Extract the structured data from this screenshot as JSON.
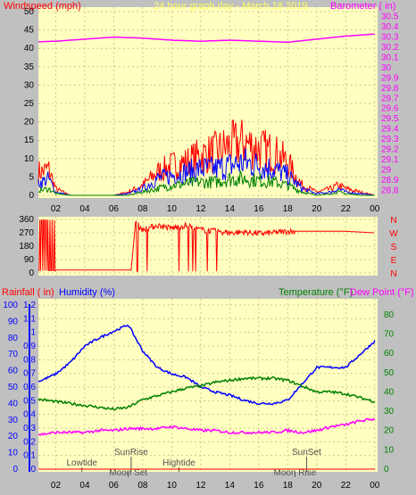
{
  "header": {
    "left_title": "Windspeed (mph)",
    "center_title": "24 hour graph day - March 18 2019",
    "right_title": "Barometer ( in)"
  },
  "rain_panel": {
    "label_rainfall": "Rainfall ( in)",
    "label_humidity": "Humidity (%)",
    "label_temperature": "Temperature (°F)",
    "label_dewpoint": "Dew Point (°F)"
  },
  "direction_labels": [
    "N",
    "W",
    "S",
    "E",
    "N"
  ],
  "colors": {
    "panel_bg": "#ffffc0",
    "frame_bg": "#c0c0c0",
    "wind_gust": "#ff0000",
    "wind_avg": "#0000ff",
    "wind_low": "#008000",
    "barometer": "#ff00ff",
    "direction": "#ff0000",
    "humidity": "#0000ff",
    "temperature": "#008000",
    "dewpoint": "#ff00ff",
    "rain": "#ff0000",
    "event_text": "#505050"
  },
  "chart_data": [
    {
      "type": "line",
      "name": "wind",
      "x_ticks": [
        "02",
        "04",
        "06",
        "08",
        "10",
        "12",
        "14",
        "16",
        "18",
        "20",
        "22",
        "00"
      ],
      "y_left_ticks": [
        0,
        5,
        10,
        15,
        20,
        25,
        30,
        35,
        40,
        45,
        50
      ],
      "y_left_range": [
        0,
        50
      ],
      "y_right_ticks": [
        "28.8",
        "28.9",
        "29",
        "29.1",
        "29.2",
        "29.3",
        "29.4",
        "29.5",
        "29.6",
        "29.7",
        "29.8",
        "29.9",
        "30",
        "30.1",
        "30.2",
        "30.3",
        "30.4",
        "30.5"
      ],
      "y_right_range": [
        28.75,
        30.55
      ],
      "series": [
        {
          "name": "Windspeed gust",
          "x_hours": [
            0,
            0.5,
            1,
            1.5,
            2,
            3,
            4,
            5,
            6,
            7,
            8,
            9,
            10,
            11,
            12,
            13,
            14,
            15,
            16,
            17,
            18,
            18.5,
            19,
            20,
            21,
            21.5,
            22,
            23,
            24
          ],
          "values": [
            9,
            8,
            7,
            8,
            2,
            0,
            0,
            0,
            0,
            1,
            3,
            7,
            9,
            10,
            12,
            13,
            15,
            16,
            14,
            13,
            10,
            6,
            3,
            1,
            2,
            3,
            2,
            1,
            0
          ]
        },
        {
          "name": "Windspeed average",
          "x_hours": [
            0,
            0.5,
            1,
            1.5,
            2,
            3,
            4,
            5,
            6,
            7,
            8,
            9,
            10,
            11,
            12,
            13,
            14,
            15,
            16,
            17,
            18,
            18.5,
            19,
            20,
            21,
            21.5,
            22,
            23,
            24
          ],
          "values": [
            5,
            4,
            4,
            5,
            1,
            0,
            0,
            0,
            0,
            0.5,
            2,
            5,
            6,
            7,
            8,
            8,
            9,
            10,
            9,
            8,
            6,
            4,
            2,
            0.5,
            1,
            2,
            1,
            0.5,
            0
          ]
        },
        {
          "name": "Windspeed low",
          "x_hours": [
            0,
            0.5,
            1,
            1.5,
            2,
            3,
            4,
            5,
            6,
            7,
            8,
            9,
            10,
            11,
            12,
            13,
            14,
            15,
            16,
            17,
            18,
            18.5,
            19,
            20,
            21,
            21.5,
            22,
            23,
            24
          ],
          "values": [
            2,
            2,
            1.5,
            2,
            0.5,
            0,
            0,
            0,
            0,
            0,
            1,
            2,
            3,
            3.5,
            4,
            4,
            5,
            5,
            4.5,
            4,
            3,
            2,
            1,
            0,
            0.5,
            1,
            0.5,
            0,
            0
          ]
        },
        {
          "name": "Barometer",
          "axis": "right",
          "x_hours": [
            0,
            2,
            4,
            6,
            8,
            10,
            12,
            14,
            16,
            18,
            20,
            22,
            24
          ],
          "values": [
            30.25,
            30.26,
            30.28,
            30.3,
            30.29,
            30.27,
            30.26,
            30.27,
            30.26,
            30.25,
            30.28,
            30.31,
            30.33
          ]
        }
      ]
    },
    {
      "type": "line",
      "name": "wind_direction",
      "x_ticks": [
        "02",
        "04",
        "06",
        "08",
        "10",
        "12",
        "14",
        "16",
        "18",
        "20",
        "22",
        "00"
      ],
      "y_ticks": [
        0,
        90,
        180,
        270,
        360
      ],
      "y_range": [
        0,
        360
      ],
      "series": [
        {
          "name": "Wind direction",
          "x_hours": [
            0,
            0.3,
            0.6,
            0.9,
            1.2,
            1.5,
            2,
            4,
            6,
            7.2,
            7.5,
            8,
            9,
            10,
            11,
            12,
            13,
            14,
            15,
            16,
            17,
            18,
            18.5,
            19,
            20,
            22,
            24
          ],
          "values": [
            350,
            20,
            340,
            15,
            330,
            20,
            20,
            20,
            20,
            20,
            340,
            290,
            320,
            300,
            320,
            290,
            280,
            270,
            275,
            265,
            270,
            280,
            280,
            280,
            280,
            280,
            270
          ]
        }
      ]
    },
    {
      "type": "line",
      "name": "humidity_temperature",
      "x_ticks": [
        "02",
        "04",
        "06",
        "08",
        "10",
        "12",
        "14",
        "16",
        "18",
        "20",
        "22",
        "00"
      ],
      "y_rain_ticks": [
        "0",
        "0.1",
        "0.2",
        "0.3",
        "0.4",
        "0.5",
        "0.6",
        "0.7",
        "0.8",
        "0.9",
        "1",
        "1.1",
        "1.2"
      ],
      "y_rain_range": [
        0,
        1.2
      ],
      "y_humidity_ticks": [
        0,
        10,
        20,
        30,
        40,
        50,
        60,
        70,
        80,
        90,
        100
      ],
      "y_humidity_range": [
        0,
        100
      ],
      "y_temp_ticks": [
        0,
        10,
        20,
        30,
        40,
        50,
        60,
        70,
        80
      ],
      "y_temp_range": [
        0,
        85
      ],
      "series": [
        {
          "name": "Humidity",
          "x_hours": [
            0,
            1,
            2,
            3,
            4,
            5,
            6,
            7,
            8,
            9,
            10,
            11,
            12,
            13,
            14,
            15,
            16,
            17,
            18,
            19,
            20,
            21,
            22,
            23,
            24
          ],
          "values": [
            52,
            54,
            58,
            65,
            75,
            80,
            84,
            88,
            72,
            62,
            58,
            56,
            50,
            47,
            45,
            42,
            40,
            40,
            42,
            52,
            62,
            62,
            62,
            70,
            78
          ]
        },
        {
          "name": "Temperature",
          "axis": "temp",
          "x_hours": [
            0,
            1,
            2,
            3,
            4,
            5,
            6,
            7,
            8,
            9,
            10,
            11,
            12,
            13,
            14,
            15,
            16,
            17,
            18,
            19,
            20,
            21,
            22,
            23,
            24
          ],
          "values": [
            37,
            36,
            35,
            34,
            33,
            32,
            31,
            32,
            36,
            38,
            40,
            42,
            43,
            45,
            46,
            47,
            47,
            47,
            46,
            43,
            40,
            40,
            39,
            37,
            35
          ]
        },
        {
          "name": "Dew Point",
          "axis": "temp",
          "x_hours": [
            0,
            1,
            2,
            3,
            4,
            5,
            6,
            7,
            8,
            9,
            10,
            11,
            12,
            13,
            14,
            15,
            16,
            17,
            18,
            19,
            20,
            21,
            22,
            23,
            24
          ],
          "values": [
            18,
            18,
            19,
            19,
            19,
            20,
            20,
            21,
            21,
            21,
            22,
            21,
            20,
            20,
            19,
            19,
            19,
            19,
            20,
            19,
            20,
            22,
            23,
            25,
            26
          ]
        },
        {
          "name": "Rainfall",
          "axis": "rain",
          "x_hours": [
            0,
            24
          ],
          "values": [
            0,
            0
          ]
        }
      ],
      "events": [
        {
          "label": "Lowtide",
          "hour": 3.8,
          "row": 1
        },
        {
          "label": "SunRise",
          "hour": 7.2,
          "row": 0
        },
        {
          "label": "Moon Set",
          "hour": 7.0,
          "row": 2
        },
        {
          "label": "Hightide",
          "hour": 10.5,
          "row": 1
        },
        {
          "label": "SunSet",
          "hour": 19.3,
          "row": 0
        },
        {
          "label": "Moon Rise",
          "hour": 18.5,
          "row": 2
        }
      ]
    }
  ]
}
